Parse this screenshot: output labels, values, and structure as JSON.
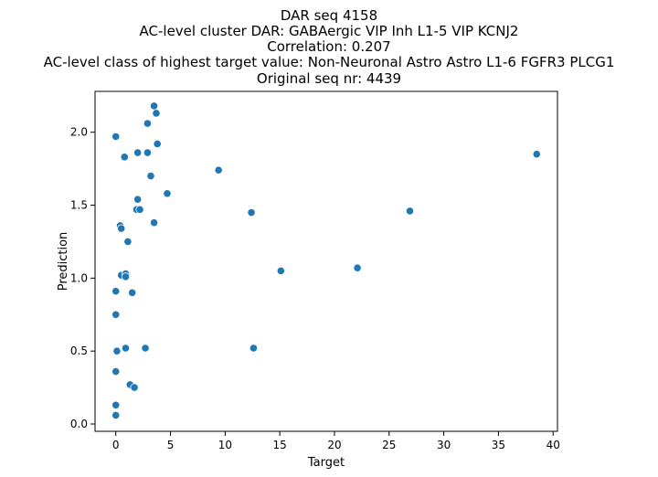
{
  "chart_data": {
    "type": "scatter",
    "title_lines": [
      "DAR seq 4158",
      "AC-level cluster DAR: GABAergic VIP Inh L1-5 VIP KCNJ2",
      "Correlation: 0.207",
      "AC-level class of highest target value: Non-Neuronal Astro Astro L1-6 FGFR3 PLCG1",
      "Original seq nr: 4439"
    ],
    "xlabel": "Target",
    "ylabel": "Prediction",
    "xlim": [
      -1.9,
      40.4
    ],
    "ylim": [
      -0.05,
      2.28
    ],
    "xticks": [
      0,
      5,
      10,
      15,
      20,
      25,
      30,
      35,
      40
    ],
    "yticks": [
      0.0,
      0.5,
      1.0,
      1.5,
      2.0
    ],
    "xtick_labels": [
      "0",
      "5",
      "10",
      "15",
      "20",
      "25",
      "30",
      "35",
      "40"
    ],
    "ytick_labels": [
      "0.0",
      "0.5",
      "1.0",
      "1.5",
      "2.0"
    ],
    "grid": false,
    "point_color": "#1f77b4",
    "points": [
      {
        "x": 0.0,
        "y": 1.97
      },
      {
        "x": 0.0,
        "y": 0.91
      },
      {
        "x": 0.0,
        "y": 0.75
      },
      {
        "x": 0.0,
        "y": 0.36
      },
      {
        "x": 0.0,
        "y": 0.13
      },
      {
        "x": 0.0,
        "y": 0.06
      },
      {
        "x": 0.1,
        "y": 0.5
      },
      {
        "x": 0.4,
        "y": 1.36
      },
      {
        "x": 0.5,
        "y": 1.34
      },
      {
        "x": 0.5,
        "y": 1.02
      },
      {
        "x": 0.8,
        "y": 1.83
      },
      {
        "x": 0.9,
        "y": 0.52
      },
      {
        "x": 0.9,
        "y": 1.03
      },
      {
        "x": 0.9,
        "y": 1.01
      },
      {
        "x": 1.1,
        "y": 1.25
      },
      {
        "x": 1.3,
        "y": 0.27
      },
      {
        "x": 1.5,
        "y": 0.9
      },
      {
        "x": 1.7,
        "y": 0.25
      },
      {
        "x": 1.9,
        "y": 1.47
      },
      {
        "x": 2.0,
        "y": 1.86
      },
      {
        "x": 2.0,
        "y": 1.54
      },
      {
        "x": 2.2,
        "y": 1.47
      },
      {
        "x": 2.7,
        "y": 0.52
      },
      {
        "x": 2.9,
        "y": 1.86
      },
      {
        "x": 2.9,
        "y": 2.06
      },
      {
        "x": 3.2,
        "y": 1.7
      },
      {
        "x": 3.5,
        "y": 2.18
      },
      {
        "x": 3.5,
        "y": 1.38
      },
      {
        "x": 3.7,
        "y": 2.13
      },
      {
        "x": 3.8,
        "y": 1.92
      },
      {
        "x": 4.7,
        "y": 1.58
      },
      {
        "x": 9.4,
        "y": 1.74
      },
      {
        "x": 12.4,
        "y": 1.45
      },
      {
        "x": 12.6,
        "y": 0.52
      },
      {
        "x": 15.1,
        "y": 1.05
      },
      {
        "x": 22.1,
        "y": 1.07
      },
      {
        "x": 26.9,
        "y": 1.46
      },
      {
        "x": 38.5,
        "y": 1.85
      }
    ]
  }
}
